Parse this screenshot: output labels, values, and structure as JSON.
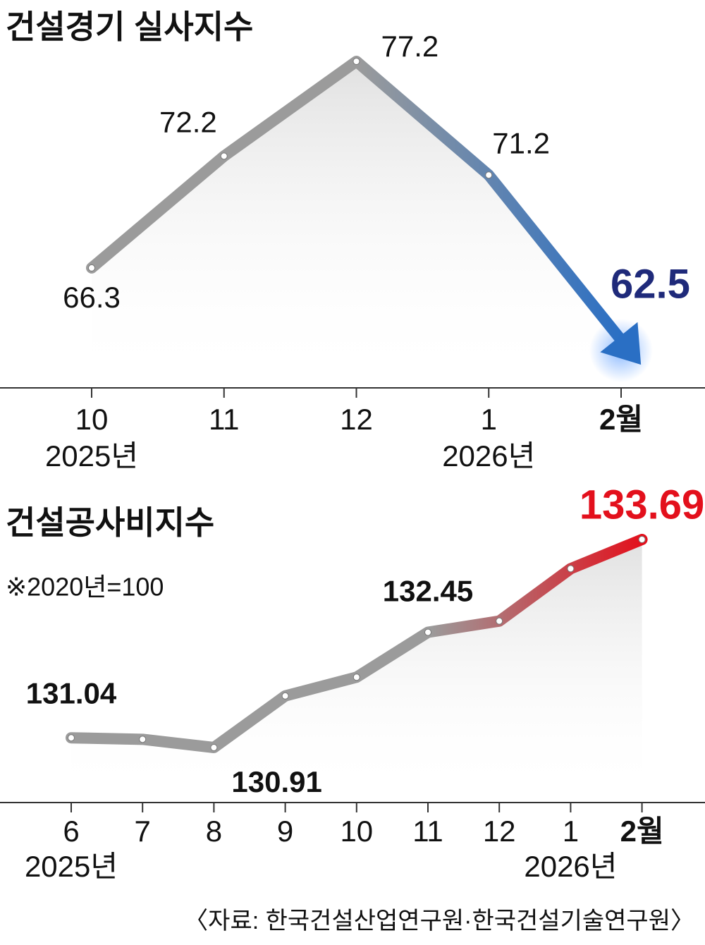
{
  "chart_data": [
    {
      "type": "line",
      "title": "건설경기 실사지수",
      "categories": [
        "10",
        "11",
        "12",
        "1",
        "2월"
      ],
      "year_labels": [
        "2025년",
        null,
        null,
        "2026년",
        null
      ],
      "values": [
        66.3,
        72.2,
        77.2,
        71.2,
        62.5
      ],
      "color": "#9b9b9b",
      "end_color": "#2a6fc4",
      "highlight_color": "#1f2a7a",
      "arrow": true
    },
    {
      "type": "line",
      "title": "건설공사비지수",
      "subtitle": "※2020년=100",
      "categories": [
        "6",
        "7",
        "8",
        "9",
        "10",
        "11",
        "12",
        "1",
        "2월"
      ],
      "year_labels": [
        "2025년",
        null,
        null,
        null,
        null,
        null,
        null,
        "2026년",
        null
      ],
      "values": [
        131.04,
        131.02,
        130.91,
        131.6,
        131.85,
        132.45,
        132.6,
        133.3,
        133.69
      ],
      "value_labels": [
        "131.04",
        null,
        "130.91",
        null,
        null,
        "132.45",
        null,
        null,
        "133.69"
      ],
      "color": "#9b9b9b",
      "end_color": "#e3101c",
      "highlight_color": "#e3101c",
      "arrow": false
    }
  ],
  "source": "〈자료: 한국건설산업연구원·한국건설기술연구원〉"
}
